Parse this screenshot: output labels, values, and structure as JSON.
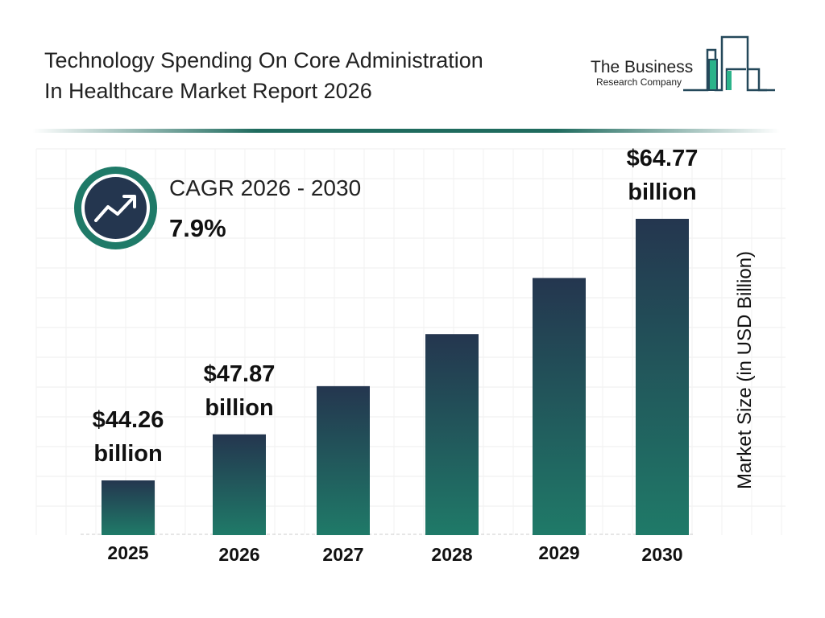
{
  "title_line1": "Technology Spending On Core Administration",
  "title_line2": "In Healthcare Market Report 2026",
  "logo": {
    "line1": "The Business",
    "line2": "Research Company"
  },
  "cagr": {
    "label": "CAGR 2026 - 2030",
    "value": "7.9%",
    "icon": "trending-up-icon"
  },
  "colors": {
    "bar_top": "#24364f",
    "bar_bottom": "#1f7a68",
    "accent": "#1f6b5e"
  },
  "chart_data": {
    "type": "bar",
    "title": "Technology Spending On Core Administration In Healthcare Market Report 2026",
    "ylabel": "Market Size (in USD Billion)",
    "xlabel": "",
    "categories": [
      "2025",
      "2026",
      "2027",
      "2028",
      "2029",
      "2030"
    ],
    "values": [
      44.26,
      47.87,
      51.65,
      55.73,
      60.13,
      64.77
    ],
    "data_labels": [
      [
        "$44.26",
        "billion"
      ],
      [
        "$47.87",
        "billion"
      ],
      null,
      null,
      null,
      [
        "$64.77",
        "billion"
      ]
    ],
    "grid": true
  }
}
